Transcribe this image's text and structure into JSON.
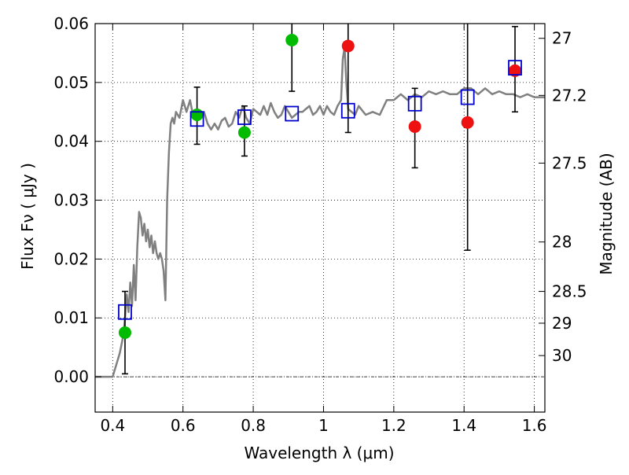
{
  "chart_data": {
    "type": "scatter",
    "xlabel": "Wavelength  λ (μm)",
    "ylabel": "Flux  Fν  ( μJy )",
    "y2label": "Magnitude (AB)",
    "xlim": [
      0.35,
      1.63
    ],
    "ylim": [
      -0.006,
      0.06
    ],
    "grid": true,
    "x_ticks": [
      0.4,
      0.6,
      0.8,
      1.0,
      1.2,
      1.4,
      1.6
    ],
    "x_tick_labels": [
      "0.4",
      "0.6",
      "0.8",
      "1",
      "1.2",
      "1.4",
      "1.6"
    ],
    "y_ticks": [
      0.0,
      0.01,
      0.02,
      0.03,
      0.04,
      0.05,
      0.06
    ],
    "y_tick_labels": [
      "0.00",
      "0.01",
      "0.02",
      "0.03",
      "0.04",
      "0.05",
      "0.06"
    ],
    "mag_ticks": [
      {
        "label": "27",
        "flux": 0.0575
      },
      {
        "label": "27.2",
        "flux": 0.0478
      },
      {
        "label": "27.5",
        "flux": 0.0363
      },
      {
        "label": "28",
        "flux": 0.0229
      },
      {
        "label": "28.5",
        "flux": 0.0145
      },
      {
        "label": "29",
        "flux": 0.0091
      },
      {
        "label": "30",
        "flux": 0.0036
      }
    ],
    "colors": {
      "model": "#808080",
      "green": "#00bb00",
      "red": "#ee1111",
      "square": "#0000cc",
      "errorbar": "#000000",
      "grid": "#000000"
    },
    "series": [
      {
        "kind": "line",
        "x": [
          0.35,
          0.4,
          0.41,
          0.42,
          0.43,
          0.435,
          0.44,
          0.445,
          0.45,
          0.455,
          0.46,
          0.465,
          0.47,
          0.475,
          0.48,
          0.485,
          0.49,
          0.495,
          0.5,
          0.505,
          0.51,
          0.515,
          0.52,
          0.525,
          0.53,
          0.535,
          0.54,
          0.545,
          0.55,
          0.555,
          0.56,
          0.565,
          0.57,
          0.575,
          0.58,
          0.59,
          0.6,
          0.605,
          0.61,
          0.62,
          0.63,
          0.64,
          0.65,
          0.66,
          0.67,
          0.68,
          0.69,
          0.7,
          0.71,
          0.72,
          0.73,
          0.74,
          0.75,
          0.76,
          0.77,
          0.78,
          0.79,
          0.8,
          0.81,
          0.82,
          0.83,
          0.84,
          0.85,
          0.86,
          0.87,
          0.88,
          0.89,
          0.9,
          0.91,
          0.92,
          0.93,
          0.94,
          0.95,
          0.96,
          0.97,
          0.98,
          0.99,
          1.0,
          1.01,
          1.02,
          1.03,
          1.04,
          1.05,
          1.055,
          1.06,
          1.065,
          1.07,
          1.08,
          1.09,
          1.1,
          1.12,
          1.14,
          1.16,
          1.18,
          1.2,
          1.22,
          1.24,
          1.26,
          1.28,
          1.3,
          1.32,
          1.34,
          1.36,
          1.38,
          1.4,
          1.42,
          1.44,
          1.46,
          1.48,
          1.5,
          1.52,
          1.54,
          1.56,
          1.58,
          1.6,
          1.63
        ],
        "y": [
          0.0,
          0.0,
          0.002,
          0.004,
          0.007,
          0.01,
          0.014,
          0.011,
          0.016,
          0.012,
          0.019,
          0.013,
          0.022,
          0.028,
          0.027,
          0.024,
          0.026,
          0.023,
          0.025,
          0.022,
          0.024,
          0.021,
          0.023,
          0.021,
          0.02,
          0.021,
          0.02,
          0.018,
          0.013,
          0.03,
          0.038,
          0.043,
          0.044,
          0.043,
          0.045,
          0.044,
          0.047,
          0.046,
          0.045,
          0.047,
          0.044,
          0.0445,
          0.0445,
          0.045,
          0.043,
          0.042,
          0.043,
          0.042,
          0.0435,
          0.044,
          0.0425,
          0.043,
          0.045,
          0.044,
          0.046,
          0.044,
          0.043,
          0.0455,
          0.045,
          0.0445,
          0.046,
          0.0445,
          0.0465,
          0.045,
          0.044,
          0.0445,
          0.046,
          0.045,
          0.044,
          0.0445,
          0.045,
          0.045,
          0.0455,
          0.046,
          0.0445,
          0.045,
          0.046,
          0.0445,
          0.046,
          0.045,
          0.0445,
          0.046,
          0.047,
          0.054,
          0.056,
          0.05,
          0.0455,
          0.045,
          0.0445,
          0.046,
          0.0445,
          0.045,
          0.0445,
          0.047,
          0.047,
          0.048,
          0.047,
          0.048,
          0.0475,
          0.0485,
          0.048,
          0.0485,
          0.048,
          0.048,
          0.049,
          0.049,
          0.048,
          0.049,
          0.048,
          0.0485,
          0.048,
          0.048,
          0.0475,
          0.048,
          0.0475,
          0.0475
        ]
      },
      {
        "kind": "errorbar",
        "x": [
          0.435,
          0.64,
          0.775,
          0.91,
          1.07,
          1.26,
          1.41,
          1.545
        ],
        "low": [
          0.0005,
          0.0395,
          0.0375,
          0.0485,
          0.0415,
          0.0355,
          0.0215,
          0.045
        ],
        "high": [
          0.0145,
          0.0492,
          0.046,
          0.06,
          0.06,
          0.049,
          0.06,
          0.0595
        ]
      },
      {
        "kind": "marker",
        "marker": "circle",
        "color_key": "green",
        "x": [
          0.435,
          0.64,
          0.775,
          0.91
        ],
        "y": [
          0.0075,
          0.0445,
          0.0415,
          0.0572
        ]
      },
      {
        "kind": "marker",
        "marker": "circle",
        "color_key": "red",
        "x": [
          1.07,
          1.26,
          1.41,
          1.545
        ],
        "y": [
          0.0562,
          0.0425,
          0.0432,
          0.052
        ]
      },
      {
        "kind": "marker",
        "marker": "square",
        "color_key": "square",
        "x": [
          0.435,
          0.64,
          0.775,
          0.91,
          1.07,
          1.26,
          1.41,
          1.545
        ],
        "y": [
          0.011,
          0.0438,
          0.0441,
          0.0447,
          0.0452,
          0.0464,
          0.0475,
          0.0525
        ]
      }
    ]
  }
}
